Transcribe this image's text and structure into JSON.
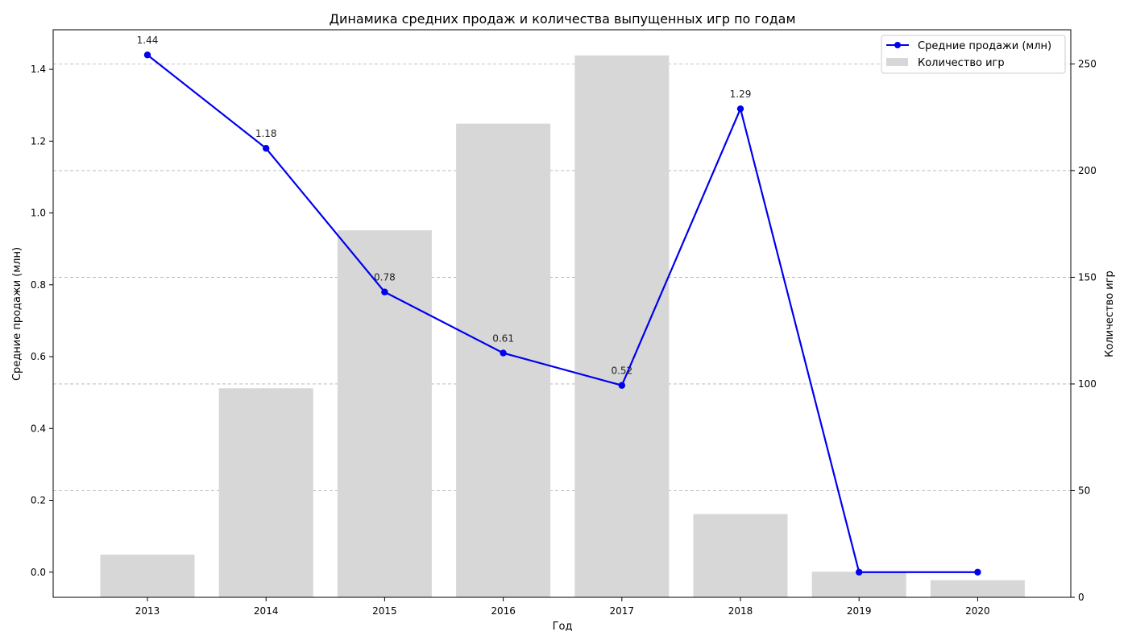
{
  "chart_data": {
    "type": "bar",
    "title": "Динамика средних продаж и количества выпущенных игр по годам",
    "xlabel": "Год",
    "ylabel": "Средние продажи (млн)",
    "ylabel_right": "Количество игр",
    "categories": [
      "2013",
      "2014",
      "2015",
      "2016",
      "2017",
      "2018",
      "2019",
      "2020"
    ],
    "ylim": [
      -0.07,
      1.51
    ],
    "ylim_right": [
      0,
      266
    ],
    "yticks": [
      0.0,
      0.2,
      0.4,
      0.6,
      0.8,
      1.0,
      1.2,
      1.4
    ],
    "yticks_labels": [
      "0.0",
      "0.2",
      "0.4",
      "0.6",
      "0.8",
      "1.0",
      "1.2",
      "1.4"
    ],
    "yticks_right": [
      0,
      50,
      100,
      150,
      200,
      250
    ],
    "yticks_right_labels": [
      "0",
      "50",
      "100",
      "150",
      "200",
      "250"
    ],
    "grid": "horizontal dashed",
    "legend_position": "top-right",
    "series": [
      {
        "name": "Средние продажи (млн)",
        "type": "line",
        "axis": "left",
        "color": "#0000ee",
        "values": [
          1.44,
          1.18,
          0.78,
          0.61,
          0.52,
          1.29,
          0.0,
          0.0
        ],
        "data_labels": [
          "1.44",
          "1.18",
          "0.78",
          "0.61",
          "0.52",
          "1.29",
          "",
          ""
        ]
      },
      {
        "name": "Количество игр",
        "type": "bar",
        "axis": "right",
        "color": "#d7d7d7",
        "values": [
          20,
          98,
          172,
          222,
          254,
          39,
          12,
          8
        ]
      }
    ]
  }
}
